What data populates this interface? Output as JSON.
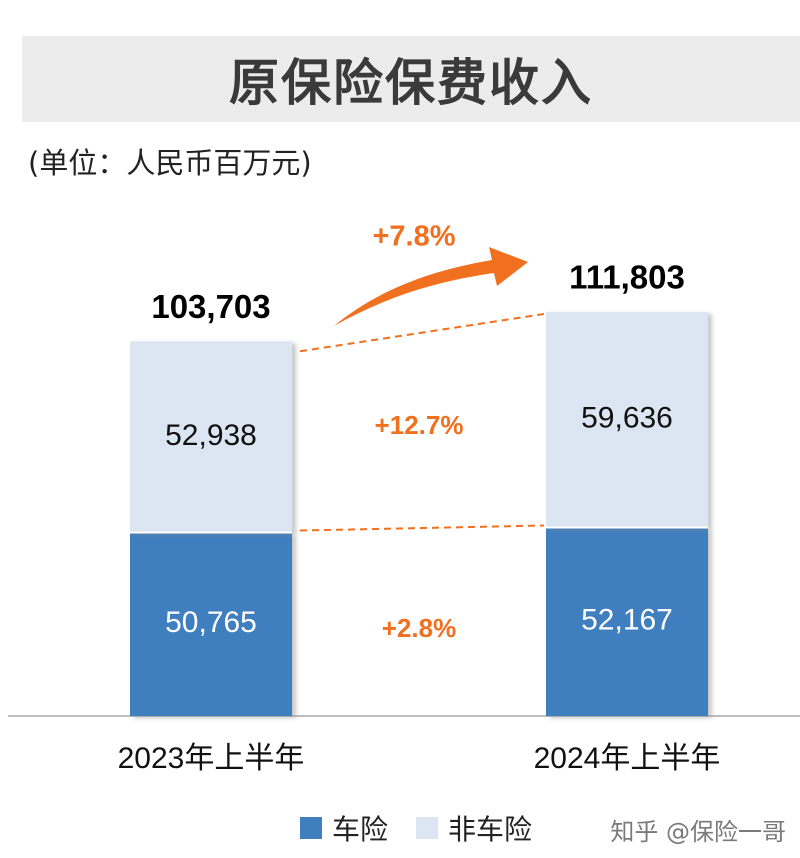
{
  "title": "原保险保费收入",
  "unit": "(单位：人民币百万元)",
  "colors": {
    "car": "#3f7fbf",
    "non_car": "#dce6f2",
    "accent": "#f07020",
    "title_band": "#ececec"
  },
  "chart_data": {
    "type": "bar",
    "stacked": true,
    "categories": [
      "2023年上半年",
      "2024年上半年"
    ],
    "series": [
      {
        "name": "车险",
        "values": [
          50765,
          52167
        ]
      },
      {
        "name": "非车险",
        "values": [
          52938,
          59636
        ]
      }
    ],
    "totals": [
      "103,703",
      "111,803"
    ],
    "segment_labels": {
      "car": [
        "50,765",
        "52,167"
      ],
      "non_car": [
        "52,938",
        "59,636"
      ]
    },
    "growth_labels": {
      "total": "+7.8%",
      "non_car": "+12.7%",
      "car": "+2.8%"
    },
    "ylim": [
      0,
      111803
    ],
    "legend_position": "bottom"
  },
  "legend": [
    "车险",
    "非车险"
  ],
  "watermark": "知乎 @保险一哥"
}
